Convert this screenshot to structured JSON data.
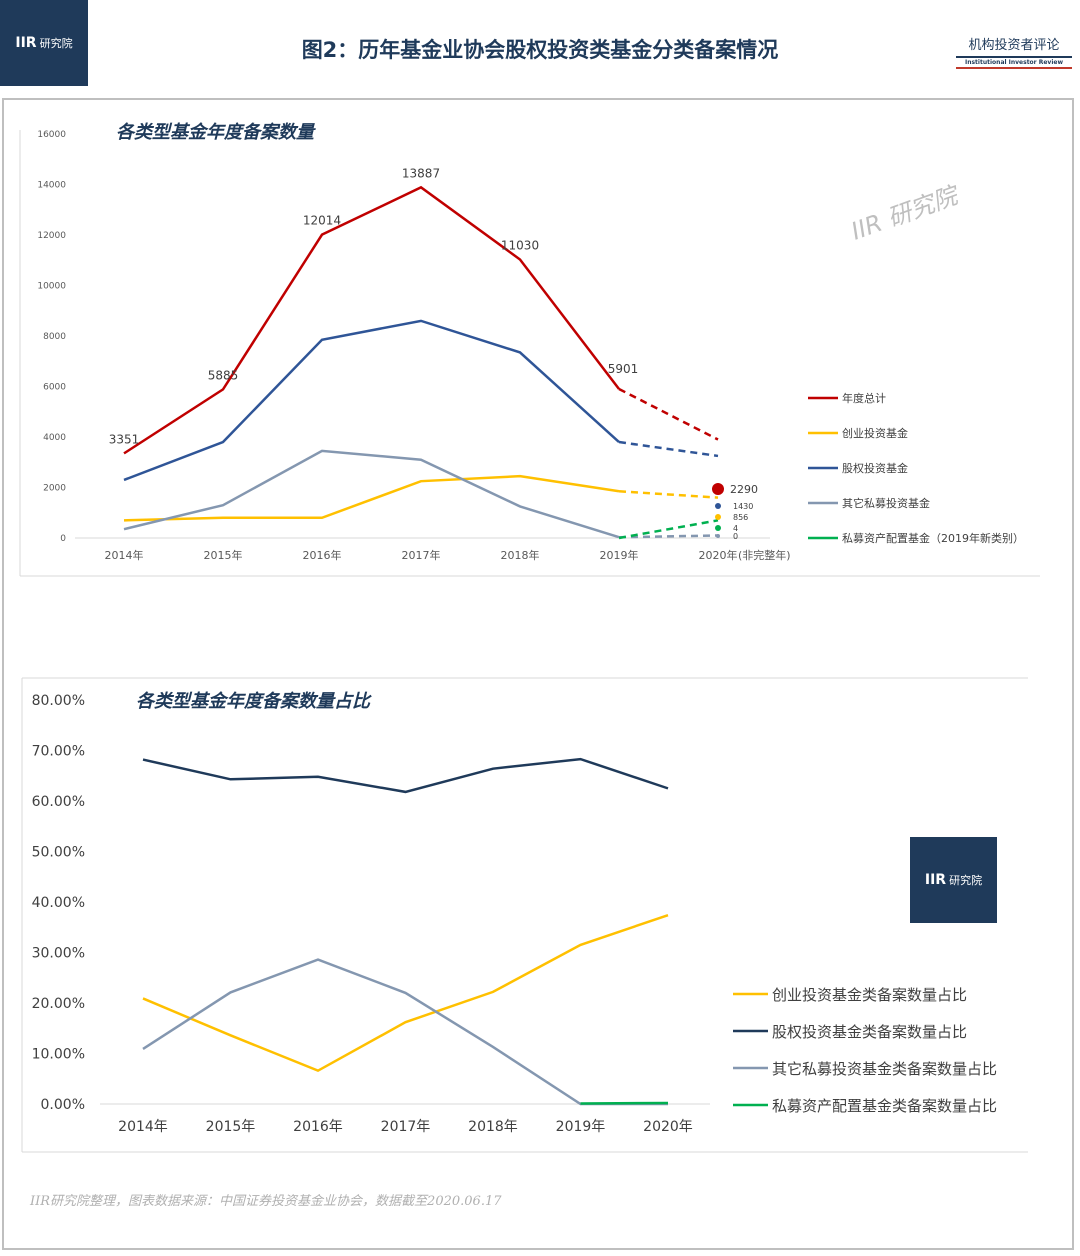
{
  "header": {
    "logo_text": "IIR",
    "logo_sub": "研究院",
    "title": "图2：历年基金业协会股权投资类基金分类备案情况",
    "brand_cn": "机构投资者评论",
    "brand_en": "Institutional Investor Review"
  },
  "watermark": "IIR 研究院",
  "source_note": "IIR研究院整理，图表数据来源：中国证券投资基金业协会，数据截至2020.06.17",
  "chart_data": [
    {
      "type": "line",
      "title": "各类型基金年度备案数量",
      "categories": [
        "2014年",
        "2015年",
        "2016年",
        "2017年",
        "2018年",
        "2019年",
        "2020年"
      ],
      "last_category_note": "(非完整年)",
      "ylim": [
        0,
        16000
      ],
      "yticks": [
        "0",
        "2000",
        "4000",
        "6000",
        "8000",
        "10000",
        "12000",
        "14000",
        "16000"
      ],
      "series": [
        {
          "name": "年度总计",
          "color": "#c00000",
          "values": [
            3351,
            5885,
            12014,
            13887,
            11030,
            5901,
            3900
          ],
          "point_labels": [
            "3351",
            "5885",
            "12014",
            "13887",
            "11030",
            "5901",
            ""
          ]
        },
        {
          "name": "创业投资基金",
          "color": "#ffc000",
          "values": [
            700,
            800,
            800,
            2250,
            2450,
            1850,
            1600
          ]
        },
        {
          "name": "股权投资基金",
          "color": "#2f5597",
          "values": [
            2300,
            3800,
            7850,
            8600,
            7350,
            3800,
            3250
          ]
        },
        {
          "name": "其它私募投资基金",
          "color": "#8497b0",
          "values": [
            350,
            1300,
            3450,
            3100,
            1250,
            30,
            100
          ]
        },
        {
          "name": "私募资产配置基金（2019年新类别）",
          "color": "#00b050",
          "values": [
            null,
            null,
            null,
            null,
            null,
            0,
            700
          ]
        }
      ],
      "snapshot_2020": [
        {
          "label": "2290",
          "color": "#c00000"
        },
        {
          "label": "1430",
          "color": "#2f5597"
        },
        {
          "label": "856",
          "color": "#ffc000"
        },
        {
          "label": "4",
          "color": "#00b050"
        },
        {
          "label": "0",
          "color": "#8497b0"
        }
      ]
    },
    {
      "type": "line",
      "title": "各类型基金年度备案数量占比",
      "categories": [
        "2014年",
        "2015年",
        "2016年",
        "2017年",
        "2018年",
        "2019年",
        "2020年"
      ],
      "ylim": [
        0,
        80
      ],
      "yticks": [
        "0.00%",
        "10.00%",
        "20.00%",
        "30.00%",
        "40.00%",
        "50.00%",
        "60.00%",
        "70.00%",
        "80.00%"
      ],
      "series": [
        {
          "name": "创业投资基金类备案数量占比",
          "color": "#ffc000",
          "values": [
            20.9,
            13.6,
            6.6,
            16.2,
            22.2,
            31.5,
            37.4
          ]
        },
        {
          "name": "股权投资基金类备案数量占比",
          "color": "#1f3a5a",
          "values": [
            68.2,
            64.3,
            64.8,
            61.8,
            66.4,
            68.3,
            62.5
          ]
        },
        {
          "name": "其它私募投资基金类备案数量占比",
          "color": "#8497b0",
          "values": [
            10.9,
            22.1,
            28.6,
            22.0,
            11.3,
            0.0,
            0.0
          ]
        },
        {
          "name": "私募资产配置基金类备案数量占比",
          "color": "#00b050",
          "values": [
            null,
            null,
            null,
            null,
            null,
            0.1,
            0.2
          ]
        }
      ]
    }
  ]
}
